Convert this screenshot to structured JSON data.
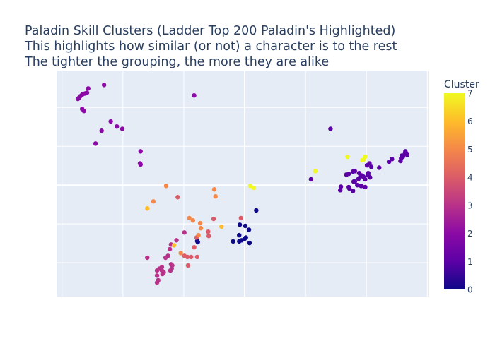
{
  "chart_data": {
    "type": "scatter",
    "title_lines": [
      "Paladin Skill Clusters (Ladder Top 200 Paladin's Highlighted)",
      "This highlights how similar (or not) a character is to the rest",
      "The tighter the grouping, the more they are alike"
    ],
    "xlabel": "",
    "ylabel": "",
    "xlim": [
      -3.09,
      3.02
    ],
    "ylim": [
      -2.87,
      2.95
    ],
    "grid": true,
    "axis_tick_labels_shown": false,
    "background_color": "#e5ecf6",
    "colorbar": {
      "title": "Cluster",
      "range": [
        0,
        7
      ],
      "ticks": [
        "0",
        "1",
        "2",
        "3",
        "4",
        "5",
        "6",
        "7"
      ],
      "colorscale": "plasma",
      "colors": [
        "#0d0887",
        "#5c01a6",
        "#8b0aa5",
        "#b83289",
        "#db5c68",
        "#f48849",
        "#febc2a",
        "#f0f921"
      ],
      "placement": "right"
    },
    "series": [
      {
        "cluster": 0,
        "x": [
          -0.77,
          -0.78,
          -0.19,
          -0.09,
          -0.09,
          -0.05,
          0.0,
          0.02,
          -0.08,
          0.01,
          0.07,
          0.08,
          0.19
        ],
        "y": [
          -1.47,
          -1.44,
          -1.45,
          -1.45,
          -1.29,
          -1.42,
          -1.38,
          -1.35,
          -1.02,
          -1.05,
          -1.15,
          -1.49,
          -0.65
        ]
      },
      {
        "cluster": 1,
        "x": [
          1.41,
          1.09,
          2.21,
          2.37,
          2.42,
          2.56,
          2.58,
          2.6,
          2.63,
          2.65,
          2.67,
          2.64,
          2.57,
          2.05,
          2.08,
          2.01,
          1.67,
          1.71,
          1.78,
          1.81,
          1.88,
          1.87,
          1.9,
          1.92,
          1.95,
          1.98,
          2.03,
          2.03,
          2.06,
          1.81,
          1.79,
          1.85,
          1.92,
          1.98,
          1.57,
          1.58,
          1.72,
          1.71,
          1.78,
          1.91
        ],
        "y": [
          1.45,
          0.15,
          0.45,
          0.6,
          0.67,
          0.62,
          0.76,
          0.73,
          0.8,
          0.82,
          0.78,
          0.87,
          0.69,
          0.56,
          0.47,
          0.51,
          0.27,
          0.29,
          0.35,
          0.36,
          0.31,
          0.16,
          0.22,
          0.25,
          0.22,
          0.15,
          0.25,
          0.31,
          0.2,
          0.09,
          0.09,
          0.0,
          -0.02,
          -0.05,
          -0.13,
          -0.04,
          -0.09,
          -0.05,
          -0.15,
          -0.02
        ]
      },
      {
        "cluster": 2,
        "x": [
          -2.74,
          -2.72,
          -2.7,
          -2.67,
          -2.65,
          -2.62,
          -2.59,
          -2.57,
          -2.31,
          -0.83,
          -2.67,
          -2.64,
          -2.2,
          -2.1,
          -2.01,
          -2.35,
          -2.45,
          -1.71,
          -1.72,
          -1.71
        ],
        "y": [
          2.22,
          2.25,
          2.29,
          2.33,
          2.35,
          2.36,
          2.38,
          2.49,
          2.58,
          2.31,
          1.96,
          1.91,
          1.64,
          1.51,
          1.45,
          1.4,
          1.07,
          0.87,
          0.56,
          0.53
        ]
      },
      {
        "cluster": 3,
        "x": [
          -0.99,
          -1.12,
          -1.21,
          -1.23,
          -1.26,
          -1.3,
          -1.6,
          -1.36,
          -1.38,
          -1.44,
          -1.44,
          -1.42,
          -1.44,
          -1.4,
          -1.35,
          -1.21,
          -1.19,
          -1.2,
          -1.22,
          -1.36,
          -1.33
        ],
        "y": [
          -1.22,
          -1.42,
          -1.53,
          -1.65,
          -1.82,
          -1.87,
          -1.87,
          -2.2,
          -2.15,
          -2.2,
          -2.33,
          -2.45,
          -2.51,
          -2.15,
          -2.29,
          -2.04,
          -2.07,
          -2.15,
          -2.2,
          -2.11,
          -2.25
        ]
      },
      {
        "cluster": 4,
        "x": [
          -1.1,
          -0.51,
          -0.6,
          -0.59,
          -0.88,
          -0.94,
          -0.83,
          -0.78,
          -0.93,
          -0.06,
          -0.79,
          -0.99
        ],
        "y": [
          -0.31,
          -0.87,
          -1.2,
          -1.31,
          -1.85,
          -1.85,
          -1.6,
          -1.85,
          -2.07,
          -0.85,
          -1.35,
          -1.82
        ]
      },
      {
        "cluster": 5,
        "x": [
          -1.29,
          -1.5,
          -0.5,
          -0.48,
          -0.91,
          -0.85,
          -0.73,
          -0.72,
          -0.76,
          -1.05
        ],
        "y": [
          -0.02,
          -0.42,
          -0.11,
          -0.29,
          -0.85,
          -0.91,
          -0.98,
          -1.11,
          -1.29,
          -1.75
        ]
      },
      {
        "cluster": 6,
        "x": [
          -1.6,
          -1.16,
          -0.38
        ],
        "y": [
          -0.6,
          -1.55,
          -1.07
        ]
      },
      {
        "cluster": 7,
        "x": [
          0.09,
          0.15,
          1.16,
          1.69,
          1.98,
          1.95,
          1.93
        ],
        "y": [
          -0.02,
          -0.07,
          0.36,
          0.73,
          0.73,
          0.65,
          0.64
        ]
      }
    ]
  }
}
